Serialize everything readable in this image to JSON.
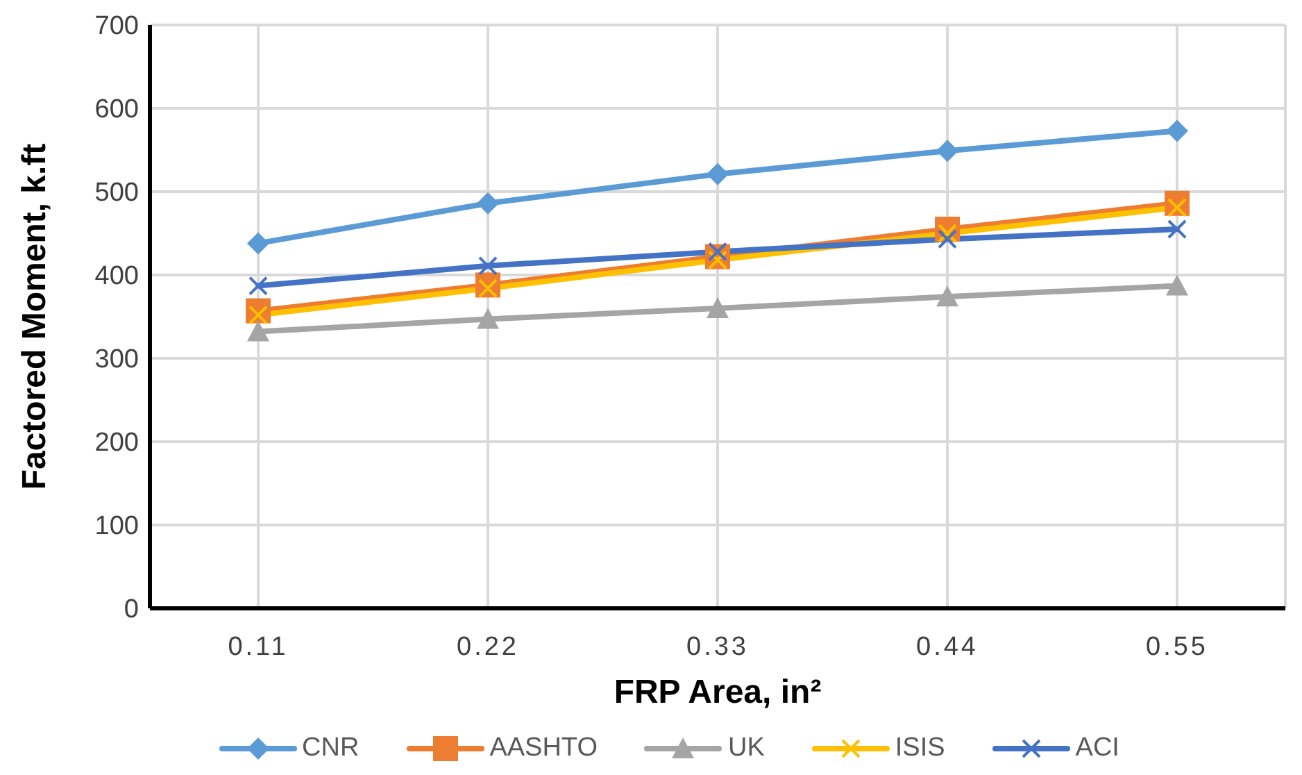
{
  "chart_data": {
    "type": "line",
    "xlabel": "FRP Area, in²",
    "ylabel": "Factored Moment, k.ft",
    "categories": [
      "0.11",
      "0.22",
      "0.33",
      "0.44",
      "0.55"
    ],
    "series": [
      {
        "name": "CNR",
        "color": "#5b9bd5",
        "marker": "diamond",
        "values": [
          438,
          486,
          521,
          549,
          573
        ]
      },
      {
        "name": "AASHTO",
        "color": "#ed7d31",
        "marker": "square",
        "values": [
          357,
          388,
          422,
          455,
          486
        ]
      },
      {
        "name": "UK",
        "color": "#a5a5a5",
        "marker": "triangle",
        "values": [
          332,
          347,
          360,
          374,
          387
        ]
      },
      {
        "name": "ISIS",
        "color": "#ffc000",
        "marker": "cross",
        "values": [
          352,
          384,
          418,
          450,
          481
        ]
      },
      {
        "name": "ACI",
        "color": "#4472c4",
        "marker": "cross",
        "values": [
          387,
          411,
          428,
          443,
          455
        ]
      }
    ],
    "ylim": [
      0,
      700
    ],
    "yticks": [
      0,
      100,
      200,
      300,
      400,
      500,
      600,
      700
    ],
    "grid": true,
    "legend": "bottom"
  }
}
